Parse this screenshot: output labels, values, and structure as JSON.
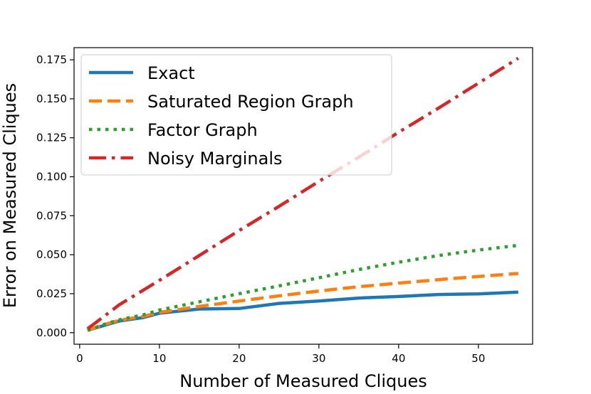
{
  "chart_data": {
    "type": "line",
    "xlabel": "Number of Measured Cliques",
    "ylabel": "Error on Measured Cliques",
    "xlim": [
      -0.7,
      56.8
    ],
    "ylim": [
      -0.0074,
      0.1828
    ],
    "xticks": [
      0,
      10,
      20,
      30,
      40,
      50
    ],
    "yticks": [
      0.0,
      0.025,
      0.05,
      0.075,
      0.1,
      0.125,
      0.15,
      0.175
    ],
    "xtick_labels": [
      "0",
      "10",
      "20",
      "30",
      "40",
      "50"
    ],
    "ytick_labels": [
      "0.000",
      "0.025",
      "0.050",
      "0.075",
      "0.100",
      "0.125",
      "0.150",
      "0.175"
    ],
    "grid": false,
    "legend_position": "top-left",
    "series": [
      {
        "name": "Exact",
        "color": "#1f77b4",
        "dash": "solid",
        "x": [
          1,
          3,
          5,
          8,
          10,
          15,
          20,
          25,
          30,
          35,
          40,
          45,
          50,
          55
        ],
        "y": [
          0.0015,
          0.0045,
          0.0075,
          0.0097,
          0.0125,
          0.0152,
          0.0155,
          0.0188,
          0.0203,
          0.0222,
          0.0232,
          0.0245,
          0.0249,
          0.026
        ]
      },
      {
        "name": "Saturated Region Graph",
        "color": "#ff7f0e",
        "dash": "dashed",
        "x": [
          1,
          3,
          5,
          8,
          10,
          15,
          20,
          25,
          30,
          35,
          40,
          45,
          50,
          55
        ],
        "y": [
          0.0015,
          0.005,
          0.008,
          0.0105,
          0.013,
          0.0168,
          0.0203,
          0.0236,
          0.0267,
          0.0295,
          0.0318,
          0.034,
          0.036,
          0.038
        ]
      },
      {
        "name": "Factor Graph",
        "color": "#2ca02c",
        "dash": "dotted",
        "x": [
          1,
          3,
          5,
          8,
          10,
          15,
          20,
          25,
          30,
          35,
          40,
          45,
          50,
          55
        ],
        "y": [
          0.0015,
          0.0052,
          0.0083,
          0.0115,
          0.0145,
          0.0198,
          0.025,
          0.03,
          0.0352,
          0.0405,
          0.0452,
          0.0495,
          0.053,
          0.056
        ]
      },
      {
        "name": "Noisy Marginals",
        "color": "#d62728",
        "dash": "dashdot",
        "x": [
          1,
          5,
          10,
          15,
          20,
          25,
          30,
          35,
          40,
          45,
          50,
          55
        ],
        "y": [
          0.0025,
          0.018,
          0.0335,
          0.0495,
          0.0655,
          0.081,
          0.097,
          0.1125,
          0.1285,
          0.144,
          0.16,
          0.176
        ]
      }
    ]
  }
}
